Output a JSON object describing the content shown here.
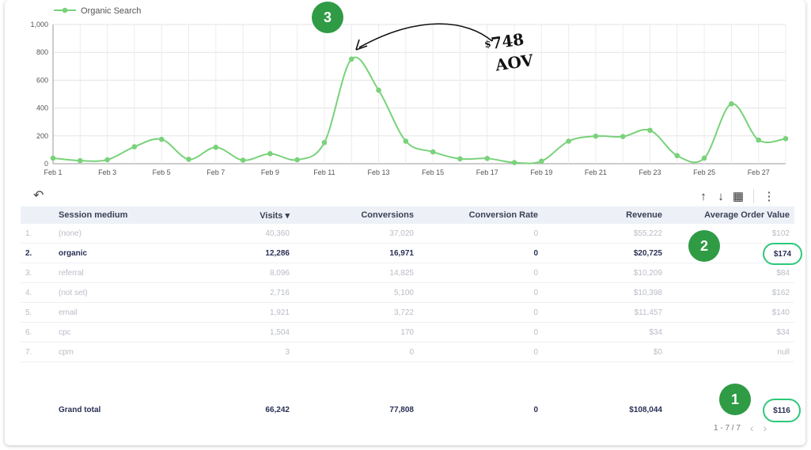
{
  "chart_data": {
    "type": "line",
    "series": [
      {
        "name": "Organic Search",
        "values": [
          40,
          22,
          28,
          122,
          175,
          32,
          118,
          25,
          72,
          28,
          152,
          752,
          528,
          162,
          85,
          35,
          38,
          8,
          18,
          162,
          198,
          195,
          240,
          58,
          40,
          430,
          170,
          180
        ]
      }
    ],
    "x": [
      "Feb 1",
      "Feb 2",
      "Feb 3",
      "Feb 4",
      "Feb 5",
      "Feb 6",
      "Feb 7",
      "Feb 8",
      "Feb 9",
      "Feb 10",
      "Feb 11",
      "Feb 12",
      "Feb 13",
      "Feb 14",
      "Feb 15",
      "Feb 16",
      "Feb 17",
      "Feb 18",
      "Feb 19",
      "Feb 20",
      "Feb 21",
      "Feb 22",
      "Feb 23",
      "Feb 24",
      "Feb 25",
      "Feb 26",
      "Feb 27",
      "Feb 28"
    ],
    "x_tick_labels": [
      "Feb 1",
      "Feb 3",
      "Feb 5",
      "Feb 7",
      "Feb 9",
      "Feb 11",
      "Feb 13",
      "Feb 15",
      "Feb 17",
      "Feb 19",
      "Feb 21",
      "Feb 23",
      "Feb 25",
      "Feb 27"
    ],
    "y_tick_labels": [
      "0",
      "200",
      "400",
      "600",
      "800",
      "1,000"
    ],
    "ylim": [
      0,
      1000
    ],
    "grid": true,
    "legend": "top-left",
    "line_color": "#79d27a"
  },
  "table": {
    "headers": [
      "Session medium",
      "Visits ▾",
      "Conversions",
      "Conversion Rate",
      "Revenue",
      "Average Order Value"
    ],
    "rows": [
      {
        "idx": "1.",
        "medium": "(none)",
        "visits": "40,360",
        "conversions": "37,020",
        "rate": "0",
        "revenue": "$55,222",
        "aov": "$102"
      },
      {
        "idx": "2.",
        "medium": "organic",
        "visits": "12,286",
        "conversions": "16,971",
        "rate": "0",
        "revenue": "$20,725",
        "aov": "$174"
      },
      {
        "idx": "3.",
        "medium": "referral",
        "visits": "8,096",
        "conversions": "14,825",
        "rate": "0",
        "revenue": "$10,209",
        "aov": "$84"
      },
      {
        "idx": "4.",
        "medium": "(not set)",
        "visits": "2,716",
        "conversions": "5,100",
        "rate": "0",
        "revenue": "$10,398",
        "aov": "$162"
      },
      {
        "idx": "5.",
        "medium": "email",
        "visits": "1,921",
        "conversions": "3,722",
        "rate": "0",
        "revenue": "$11,457",
        "aov": "$140"
      },
      {
        "idx": "6.",
        "medium": "cpc",
        "visits": "1,504",
        "conversions": "170",
        "rate": "0",
        "revenue": "$34",
        "aov": "$34"
      },
      {
        "idx": "7.",
        "medium": "cpm",
        "visits": "3",
        "conversions": "0",
        "rate": "0",
        "revenue": "$0",
        "aov": "null"
      }
    ],
    "grand_total": {
      "label": "Grand total",
      "visits": "66,242",
      "conversions": "77,808",
      "rate": "0",
      "revenue": "$108,044",
      "aov": "$116"
    }
  },
  "pager": {
    "text": "1 - 7 / 7",
    "prev": "‹",
    "next": "›"
  },
  "toolbar": {
    "undo": "↶",
    "sort_up": "↑",
    "sort_down": "↓",
    "chart": "▦",
    "more": "⋮"
  },
  "annotations": {
    "badge_1": "1",
    "badge_2": "2",
    "badge_3": "3",
    "note_dollar": "$",
    "note_value": "748",
    "note_label": "AOV"
  },
  "colors": {
    "accent_green": "#2f9b45",
    "oval_border": "#2bc97a",
    "header_bg": "#edf1f7"
  }
}
